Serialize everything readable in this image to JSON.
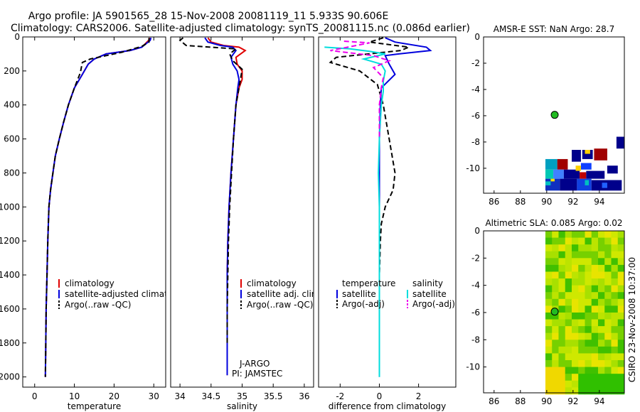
{
  "header": {
    "title_line1": "Argo profile: JA 5901565_28 15-Nov-2008 20081119_11 5.933S 90.606E",
    "title_line2": "Climatology: CARS2006. Satellite-adjusted climatology: synTS_20081115.nc (0.086d earlier)"
  },
  "credit": "CSIRO 23-Nov-2008 10:37:00",
  "colors": {
    "climatology": "#e00000",
    "satellite": "#0000dd",
    "argo": "#000000",
    "sat_salinity": "#00dddd",
    "argo_salinity": "#ee00ee",
    "land_dot": "#22bb22"
  },
  "chart_data": [
    {
      "type": "line",
      "title": "",
      "xlabel": "temperature",
      "ylabel": "",
      "xlim": [
        -3,
        33
      ],
      "ylim": [
        2060,
        0
      ],
      "xticks": [
        0,
        10,
        20,
        30
      ],
      "xtick_labels": [
        "0",
        "10",
        "20",
        "30"
      ],
      "yticks": [
        0,
        200,
        400,
        600,
        800,
        1000,
        1200,
        1400,
        1600,
        1800,
        2000
      ],
      "ytick_labels": [
        "0",
        "200",
        "400",
        "600",
        "800",
        "1000",
        "1200",
        "1400",
        "1600",
        "1800",
        "2000"
      ],
      "legend": [
        "climatology",
        "satellite-adjusted climatology",
        "Argo(..raw -QC)"
      ],
      "series": [
        {
          "name": "climatology",
          "style": "solid",
          "color": "#e00000",
          "x": [
            29,
            28.7,
            27,
            24,
            18,
            15,
            13.5,
            12,
            10,
            8.5,
            7.3,
            6.2,
            5.2,
            4.6,
            4,
            3.6,
            3.3,
            3.1,
            2.9,
            2.8,
            2.7
          ],
          "y": [
            5,
            20,
            60,
            80,
            100,
            130,
            160,
            220,
            300,
            400,
            500,
            600,
            700,
            800,
            900,
            1000,
            1200,
            1400,
            1600,
            1800,
            2000
          ]
        },
        {
          "name": "satellite",
          "style": "solid",
          "color": "#0000dd",
          "x": [
            29.3,
            29.1,
            27,
            24,
            18,
            15,
            13.5,
            12,
            10,
            8.5,
            7.3,
            6.2,
            5.2,
            4.6,
            4,
            3.6,
            3.3,
            3.1,
            2.9,
            2.8,
            2.7
          ],
          "y": [
            5,
            20,
            60,
            80,
            100,
            130,
            160,
            220,
            300,
            400,
            500,
            600,
            700,
            800,
            900,
            1000,
            1200,
            1400,
            1600,
            1800,
            2000
          ]
        },
        {
          "name": "argo",
          "style": "dashed",
          "color": "#000000",
          "x": [
            28.8,
            28.8,
            27,
            22,
            17,
            14,
            12,
            11.5,
            10,
            8.5,
            7.3,
            6.2,
            5.2,
            4.6,
            4,
            3.6,
            3.3,
            3.1,
            2.9,
            2.8,
            2.7
          ],
          "y": [
            5,
            30,
            55,
            90,
            115,
            130,
            150,
            210,
            300,
            400,
            500,
            600,
            700,
            800,
            900,
            1000,
            1200,
            1400,
            1600,
            1800,
            2000
          ]
        }
      ]
    },
    {
      "type": "line",
      "title": "",
      "xlabel": "salinity",
      "ylabel": "",
      "xlim": [
        33.85,
        36.15
      ],
      "ylim": [
        2060,
        0
      ],
      "xticks": [
        34,
        34.5,
        35,
        35.5,
        36
      ],
      "xtick_labels": [
        "34",
        "34.5",
        "35",
        "35.5",
        "36"
      ],
      "legend": [
        "climatology",
        "satellite adj. clim.",
        "Argo(..raw -QC)"
      ],
      "annotations": [
        "J-ARGO",
        "PI: JAMSTEC"
      ],
      "series": [
        {
          "name": "climatology",
          "style": "solid",
          "color": "#e00000",
          "x": [
            34.45,
            34.5,
            34.7,
            34.95,
            35.05,
            34.9,
            34.92,
            35,
            35,
            34.95,
            34.9,
            34.86,
            34.82,
            34.79,
            34.77,
            34.76,
            34.76,
            34.76,
            34.76
          ],
          "y": [
            5,
            30,
            50,
            60,
            80,
            120,
            160,
            200,
            250,
            300,
            400,
            600,
            800,
            1000,
            1200,
            1400,
            1600,
            1800,
            1990
          ]
        },
        {
          "name": "satellite",
          "style": "solid",
          "color": "#0000dd",
          "x": [
            34.4,
            34.45,
            34.65,
            34.85,
            34.9,
            34.82,
            34.85,
            34.92,
            34.95,
            34.93,
            34.9,
            34.86,
            34.82,
            34.79,
            34.77,
            34.76,
            34.76,
            34.76,
            34.76
          ],
          "y": [
            5,
            30,
            50,
            60,
            80,
            120,
            160,
            200,
            250,
            300,
            400,
            600,
            800,
            1000,
            1200,
            1400,
            1600,
            1800,
            1990
          ]
        },
        {
          "name": "argo",
          "style": "dashed",
          "color": "#000000",
          "x": [
            34.05,
            34.0,
            34.1,
            34.5,
            34.9,
            34.8,
            34.85,
            35.0,
            34.95,
            34.9,
            34.86,
            34.83,
            34.8,
            34.78,
            34.77,
            34.76,
            34.76
          ],
          "y": [
            5,
            20,
            50,
            60,
            70,
            100,
            140,
            190,
            300,
            400,
            600,
            800,
            1000,
            1200,
            1400,
            1600,
            1800
          ]
        }
      ]
    },
    {
      "type": "line",
      "title": "",
      "xlabel": "difference from climatology",
      "ylabel": "",
      "xlim": [
        -3.1,
        3.9
      ],
      "ylim": [
        2060,
        0
      ],
      "xticks": [
        -2,
        0,
        2
      ],
      "xtick_labels": [
        "-2",
        "0",
        "2"
      ],
      "legend_columns": [
        {
          "header": "temperature",
          "entries": [
            "satellite",
            "Argo(-adj)"
          ]
        },
        {
          "header": "salinity",
          "entries": [
            "satellite",
            "Argo(-adj)"
          ]
        }
      ],
      "series": [
        {
          "name": "temperature satellite",
          "style": "solid",
          "color": "#0000dd",
          "x": [
            0.3,
            0.8,
            2.4,
            2.6,
            1.0,
            0.3,
            0.5,
            0.8,
            0.1,
            0.05,
            0,
            0,
            0,
            0,
            0,
            0,
            0
          ],
          "y": [
            5,
            30,
            60,
            80,
            100,
            110,
            160,
            220,
            300,
            400,
            600,
            800,
            1000,
            1200,
            1400,
            1600,
            2000
          ]
        },
        {
          "name": "temperature argo",
          "style": "dashed",
          "color": "#000000",
          "x": [
            0.2,
            -0.5,
            1.5,
            1.1,
            -2.2,
            -2.5,
            -1.0,
            -0.1,
            0.2,
            0.5,
            0.8,
            0.7,
            0.3,
            0.1,
            0.05,
            0,
            0,
            0
          ],
          "y": [
            5,
            30,
            60,
            80,
            120,
            150,
            200,
            280,
            400,
            600,
            800,
            900,
            1000,
            1100,
            1200,
            1400,
            1600,
            1800
          ]
        },
        {
          "name": "salinity satellite",
          "style": "solid",
          "color": "#00dddd",
          "x": [
            -2.8,
            -1.5,
            -0.5,
            0.3,
            -0.8,
            0.1,
            0.3,
            0.2,
            0.2,
            0.1,
            0,
            -0.05,
            0,
            0,
            0,
            0
          ],
          "y": [
            60,
            70,
            85,
            100,
            130,
            160,
            200,
            260,
            320,
            400,
            600,
            800,
            1000,
            1400,
            1800,
            2000
          ]
        },
        {
          "name": "salinity argo",
          "style": "dashed",
          "color": "#ee00ee",
          "x": [
            -1.8,
            -0.5,
            -2.5,
            -0.3,
            0.5,
            -0.3,
            0.2,
            0.1,
            0,
            0
          ],
          "y": [
            25,
            35,
            80,
            110,
            140,
            180,
            240,
            300,
            400,
            600
          ]
        }
      ]
    },
    {
      "type": "heatmap",
      "title": "AMSR-E SST: NaN Argo: 28.7",
      "xlim": [
        85.2,
        95.9
      ],
      "ylim": [
        -11.9,
        0
      ],
      "xticks": [
        86,
        88,
        90,
        92,
        94
      ],
      "xtick_labels": [
        "86",
        "88",
        "90",
        "92",
        "94"
      ],
      "yticks": [
        0,
        -2,
        -4,
        -6,
        -8,
        -10
      ],
      "ytick_labels": [
        "0",
        "-2",
        "-4",
        "-6",
        "-8",
        "-10"
      ],
      "marker": {
        "lon": 90.606,
        "lat": -5.933
      }
    },
    {
      "type": "heatmap",
      "title": "Altimetric SLA: 0.085 Argo: 0.02",
      "xlim": [
        85.2,
        95.9
      ],
      "ylim": [
        -11.9,
        0
      ],
      "xticks": [
        86,
        88,
        90,
        92,
        94
      ],
      "xtick_labels": [
        "86",
        "88",
        "90",
        "92",
        "94"
      ],
      "yticks": [
        0,
        -2,
        -4,
        -6,
        -8,
        -10
      ],
      "ytick_labels": [
        "0",
        "-2",
        "-4",
        "-6",
        "-8",
        "-10"
      ],
      "marker": {
        "lon": 90.606,
        "lat": -5.933
      }
    }
  ]
}
